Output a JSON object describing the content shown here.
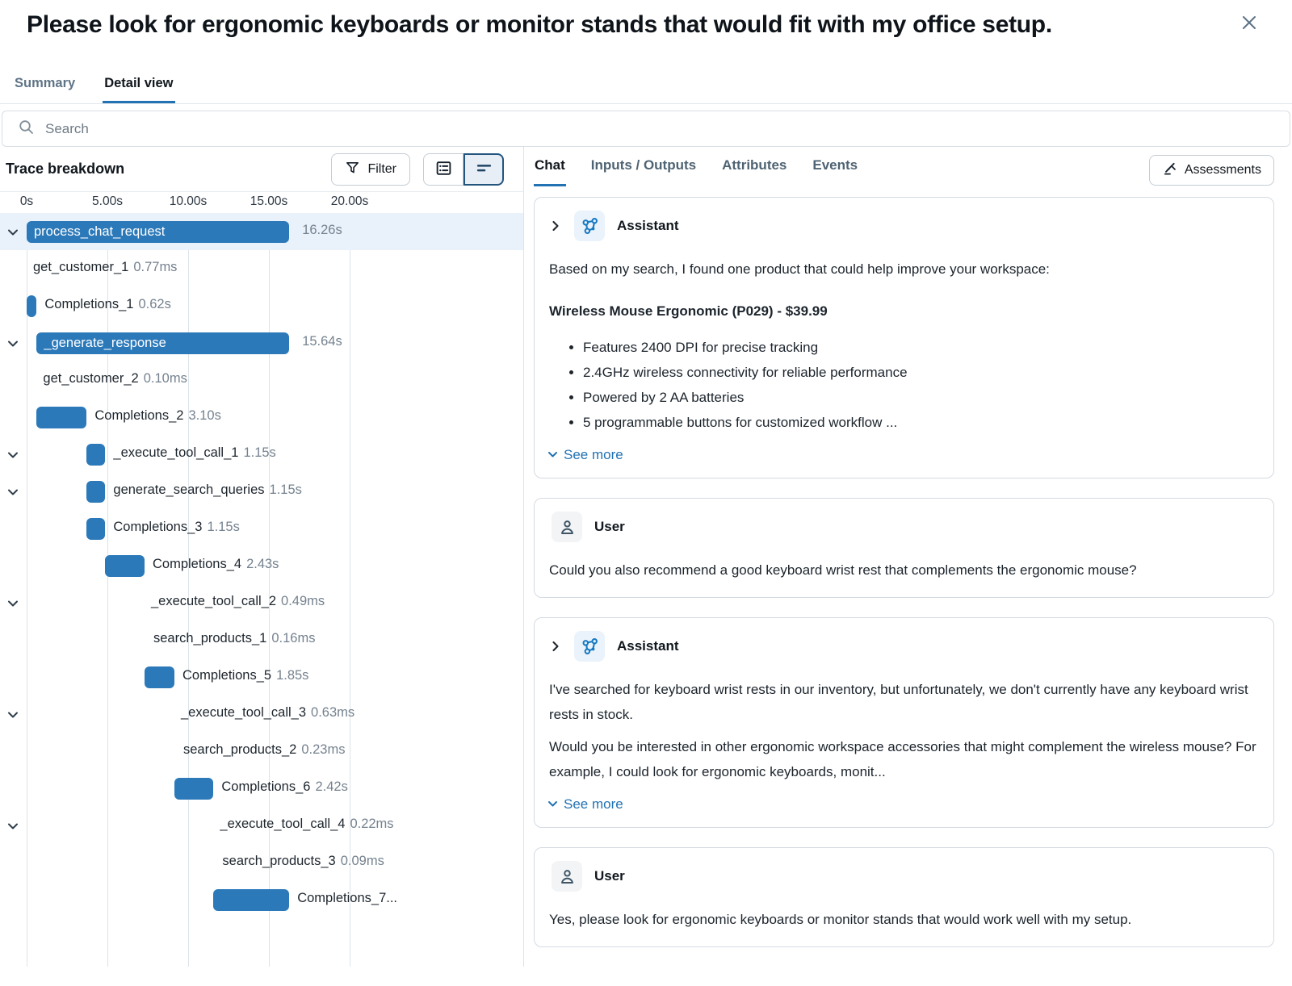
{
  "header": {
    "title": "Please look for ergonomic keyboards or monitor stands that would fit with my office setup.",
    "tabs": [
      {
        "label": "Summary",
        "active": false
      },
      {
        "label": "Detail view",
        "active": true
      }
    ]
  },
  "search": {
    "placeholder": "Search"
  },
  "trace": {
    "title": "Trace breakdown",
    "filter_label": "Filter",
    "view_toggles": [
      {
        "icon": "span-list-icon",
        "selected": false
      },
      {
        "icon": "gantt-view-icon",
        "selected": true
      }
    ],
    "axis_ticks": [
      "0s",
      "5.00s",
      "10.00s",
      "15.00s",
      "20.00s"
    ],
    "axis_seconds": [
      0,
      5,
      10,
      15,
      20
    ],
    "rows": [
      {
        "name": "process_chat_request",
        "duration": "16.26s",
        "start": 0,
        "dur": 16.26,
        "bar": true,
        "inbar": true,
        "chevron": true,
        "selected": true
      },
      {
        "name": "get_customer_1",
        "duration": "0.77ms",
        "start": 0,
        "dur": 0,
        "bar": false,
        "inbar": false,
        "chevron": false,
        "selected": false
      },
      {
        "name": "Completions_1",
        "duration": "0.62s",
        "start": 0,
        "dur": 0.62,
        "bar": true,
        "inbar": false,
        "chevron": false,
        "selected": false
      },
      {
        "name": "_generate_response",
        "duration": "15.64s",
        "start": 0.62,
        "dur": 15.64,
        "bar": true,
        "inbar": true,
        "chevron": true,
        "selected": false
      },
      {
        "name": "get_customer_2",
        "duration": "0.10ms",
        "start": 0.62,
        "dur": 0,
        "bar": false,
        "inbar": false,
        "chevron": false,
        "selected": false
      },
      {
        "name": "Completions_2",
        "duration": "3.10s",
        "start": 0.62,
        "dur": 3.1,
        "bar": true,
        "inbar": false,
        "chevron": false,
        "selected": false
      },
      {
        "name": "_execute_tool_call_1",
        "duration": "1.15s",
        "start": 3.72,
        "dur": 1.15,
        "bar": true,
        "inbar": false,
        "chevron": true,
        "selected": false
      },
      {
        "name": "generate_search_queries",
        "duration": "1.15s",
        "start": 3.72,
        "dur": 1.15,
        "bar": true,
        "inbar": false,
        "chevron": true,
        "selected": false
      },
      {
        "name": "Completions_3",
        "duration": "1.15s",
        "start": 3.72,
        "dur": 1.15,
        "bar": true,
        "inbar": false,
        "chevron": false,
        "selected": false
      },
      {
        "name": "Completions_4",
        "duration": "2.43s",
        "start": 4.87,
        "dur": 2.43,
        "bar": true,
        "inbar": false,
        "chevron": false,
        "selected": false
      },
      {
        "name": "_execute_tool_call_2",
        "duration": "0.49ms",
        "start": 7.3,
        "dur": 0,
        "bar": false,
        "inbar": false,
        "chevron": true,
        "selected": false
      },
      {
        "name": "search_products_1",
        "duration": "0.16ms",
        "start": 7.45,
        "dur": 0,
        "bar": false,
        "inbar": false,
        "chevron": false,
        "selected": false
      },
      {
        "name": "Completions_5",
        "duration": "1.85s",
        "start": 7.3,
        "dur": 1.85,
        "bar": true,
        "inbar": false,
        "chevron": false,
        "selected": false
      },
      {
        "name": "_execute_tool_call_3",
        "duration": "0.63ms",
        "start": 9.15,
        "dur": 0,
        "bar": false,
        "inbar": false,
        "chevron": true,
        "selected": false
      },
      {
        "name": "search_products_2",
        "duration": "0.23ms",
        "start": 9.3,
        "dur": 0,
        "bar": false,
        "inbar": false,
        "chevron": false,
        "selected": false
      },
      {
        "name": "Completions_6",
        "duration": "2.42s",
        "start": 9.15,
        "dur": 2.42,
        "bar": true,
        "inbar": false,
        "chevron": false,
        "selected": false
      },
      {
        "name": "_execute_tool_call_4",
        "duration": "0.22ms",
        "start": 11.57,
        "dur": 0,
        "bar": false,
        "inbar": false,
        "chevron": true,
        "selected": false
      },
      {
        "name": "search_products_3",
        "duration": "0.09ms",
        "start": 11.72,
        "dur": 0,
        "bar": false,
        "inbar": false,
        "chevron": false,
        "selected": false
      },
      {
        "name": "Completions_7...",
        "duration": "",
        "start": 11.57,
        "dur": 4.69,
        "bar": true,
        "inbar": false,
        "chevron": false,
        "selected": false
      }
    ]
  },
  "detail": {
    "tabs": [
      {
        "label": "Chat",
        "active": true
      },
      {
        "label": "Inputs / Outputs",
        "active": false
      },
      {
        "label": "Attributes",
        "active": false
      },
      {
        "label": "Events",
        "active": false
      }
    ],
    "assessments_label": "Assessments",
    "messages": [
      {
        "role": "Assistant",
        "icon": "agent-graph-icon",
        "collapsible": true,
        "parts": [
          {
            "kind": "text",
            "text": "Based on my search, I found one product that could help improve your workspace:"
          },
          {
            "kind": "bold",
            "text": "Wireless Mouse Ergonomic (P029) - $39.99"
          },
          {
            "kind": "bullets",
            "items": [
              "Features 2400 DPI for precise tracking",
              "2.4GHz wireless connectivity for reliable performance",
              "Powered by 2 AA batteries",
              "5 programmable buttons for customized workflow ..."
            ]
          }
        ],
        "see_more": "See more"
      },
      {
        "role": "User",
        "icon": "person-icon",
        "collapsible": false,
        "parts": [
          {
            "kind": "text",
            "text": "Could you also recommend a good keyboard wrist rest that complements the ergonomic mouse?"
          }
        ],
        "see_more": null
      },
      {
        "role": "Assistant",
        "icon": "agent-graph-icon",
        "collapsible": true,
        "parts": [
          {
            "kind": "text",
            "text": "I've searched for keyboard wrist rests in our inventory, but unfortunately, we don't currently have any keyboard wrist rests in stock."
          },
          {
            "kind": "text",
            "text": "Would you be interested in other ergonomic workspace accessories that might complement the wireless mouse? For example, I could look for ergonomic keyboards, monit..."
          }
        ],
        "see_more": "See more"
      },
      {
        "role": "User",
        "icon": "person-icon",
        "collapsible": false,
        "parts": [
          {
            "kind": "text",
            "text": "Yes, please look for ergonomic keyboards or monitor stands that would work well with my setup."
          }
        ],
        "see_more": null
      }
    ]
  },
  "colors": {
    "accent": "#2272b4",
    "bar": "#2b79b9",
    "selected_row": "#e9f1fa",
    "duration_text": "#75828f"
  }
}
